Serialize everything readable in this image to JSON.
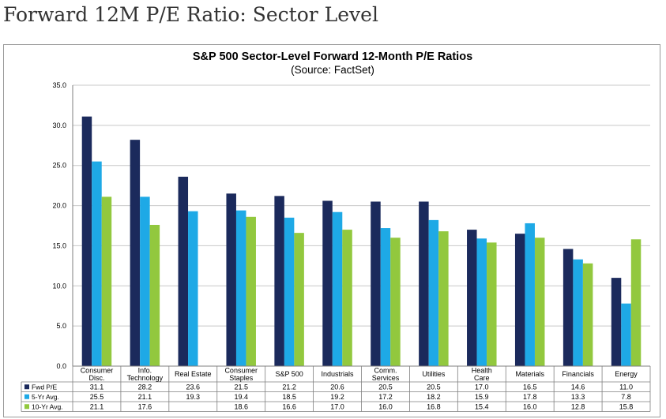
{
  "page": {
    "heading": "Forward 12M P/E Ratio: Sector Level"
  },
  "chart_data": {
    "type": "bar",
    "title": "S&P 500 Sector-Level Forward 12-Month P/E Ratios",
    "subtitle": "(Source: FactSet)",
    "xlabel": "",
    "ylabel": "",
    "ylim": [
      0,
      35
    ],
    "yticks": [
      "0.0",
      "5.0",
      "10.0",
      "15.0",
      "20.0",
      "25.0",
      "30.0",
      "35.0"
    ],
    "grid": true,
    "legend_placement": "data-table",
    "categories": [
      [
        "Consumer",
        "Disc."
      ],
      [
        "Info.",
        "Technology"
      ],
      [
        "Real Estate"
      ],
      [
        "Consumer",
        "Staples"
      ],
      [
        "S&P 500"
      ],
      [
        "Industrials"
      ],
      [
        "Comm.",
        "Services"
      ],
      [
        "Utilities"
      ],
      [
        "Health",
        "Care"
      ],
      [
        "Materials"
      ],
      [
        "Financials"
      ],
      [
        "Energy"
      ]
    ],
    "series": [
      {
        "name": "Fwd P/E",
        "color": "#1b2a5c",
        "values": [
          31.1,
          28.2,
          23.6,
          21.5,
          21.2,
          20.6,
          20.5,
          20.5,
          17.0,
          16.5,
          14.6,
          11.0
        ],
        "labels": [
          "31.1",
          "28.2",
          "23.6",
          "21.5",
          "21.2",
          "20.6",
          "20.5",
          "20.5",
          "17.0",
          "16.5",
          "14.6",
          "11.0"
        ]
      },
      {
        "name": "5-Yr Avg.",
        "color": "#1ea9e6",
        "values": [
          25.5,
          21.1,
          19.3,
          19.4,
          18.5,
          19.2,
          17.2,
          18.2,
          15.9,
          17.8,
          13.3,
          7.8
        ],
        "labels": [
          "25.5",
          "21.1",
          "19.3",
          "19.4",
          "18.5",
          "19.2",
          "17.2",
          "18.2",
          "15.9",
          "17.8",
          "13.3",
          "7.8"
        ]
      },
      {
        "name": "10-Yr Avg.",
        "color": "#92c83e",
        "values": [
          21.1,
          17.6,
          null,
          18.6,
          16.6,
          17.0,
          16.0,
          16.8,
          15.4,
          16.0,
          12.8,
          15.8
        ],
        "labels": [
          "21.1",
          "17.6",
          "",
          "18.6",
          "16.6",
          "17.0",
          "16.0",
          "16.8",
          "15.4",
          "16.0",
          "12.8",
          "15.8"
        ]
      }
    ]
  }
}
